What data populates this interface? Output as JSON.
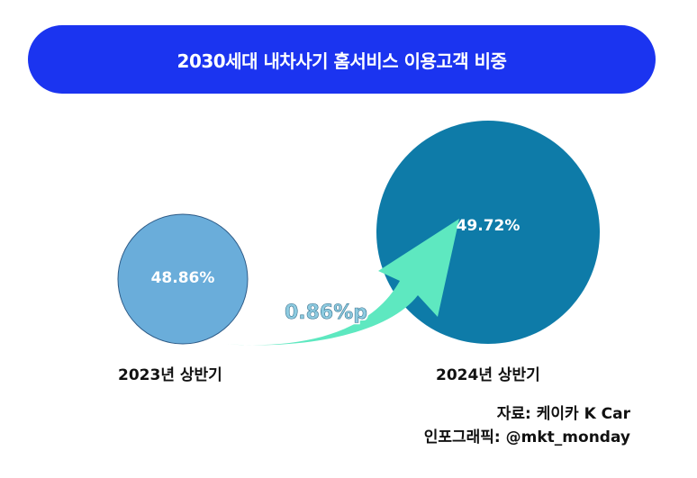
{
  "title": "2030세대 내차사기 홈서비스 이용고객 비중",
  "colors": {
    "title_bg": "#1b34f0",
    "bubble_2023": "#6aadda",
    "bubble_2024": "#0e7ba8",
    "arrow": "#5ee8c0"
  },
  "chart_data": {
    "type": "bubble",
    "title": "2030세대 내차사기 홈서비스 이용고객 비중",
    "categories": [
      "2023년 상반기",
      "2024년 상반기"
    ],
    "values": [
      48.86,
      49.72
    ],
    "value_labels": [
      "48.86%",
      "49.72%"
    ],
    "unit": "%",
    "change_label": "0.86%p",
    "change": 0.86
  },
  "source": {
    "line1": "자료: 케이카 K Car",
    "line2": "인포그래픽: @mkt_monday"
  }
}
